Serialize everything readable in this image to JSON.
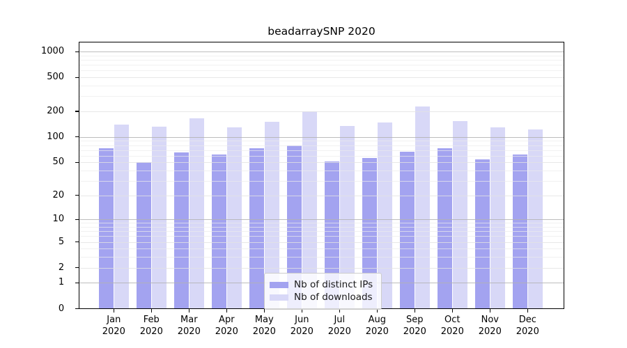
{
  "chart_data": {
    "type": "bar",
    "title": "beadarraySNP 2020",
    "categories": [
      "Jan 2020",
      "Feb 2020",
      "Mar 2020",
      "Apr 2020",
      "May 2020",
      "Jun 2020",
      "Jul 2020",
      "Aug 2020",
      "Sep 2020",
      "Oct 2020",
      "Nov 2020",
      "Dec 2020"
    ],
    "series": [
      {
        "name": "Nb of distinct IPs",
        "color": "#a3a3f0",
        "values": [
          74,
          50,
          66,
          62,
          73,
          79,
          51,
          56,
          67,
          74,
          54,
          62
        ]
      },
      {
        "name": "Nb of downloads",
        "color": "#d8d8f7",
        "values": [
          139,
          132,
          165,
          130,
          150,
          200,
          135,
          148,
          230,
          155,
          130,
          122
        ]
      }
    ],
    "xlabel": "",
    "ylabel": "",
    "yscale": "log1p",
    "yticks": [
      0,
      1,
      2,
      5,
      10,
      20,
      50,
      100,
      200,
      500,
      1000
    ],
    "ylim": [
      0,
      1300
    ],
    "grid": true,
    "legend_position": "lower-center",
    "colors": {
      "major_grid": "#b2b2b2",
      "labeled_grid": "#e2e2e2",
      "minor_grid": "#ebebeb",
      "spine": "#000000",
      "text": "#000000"
    }
  }
}
